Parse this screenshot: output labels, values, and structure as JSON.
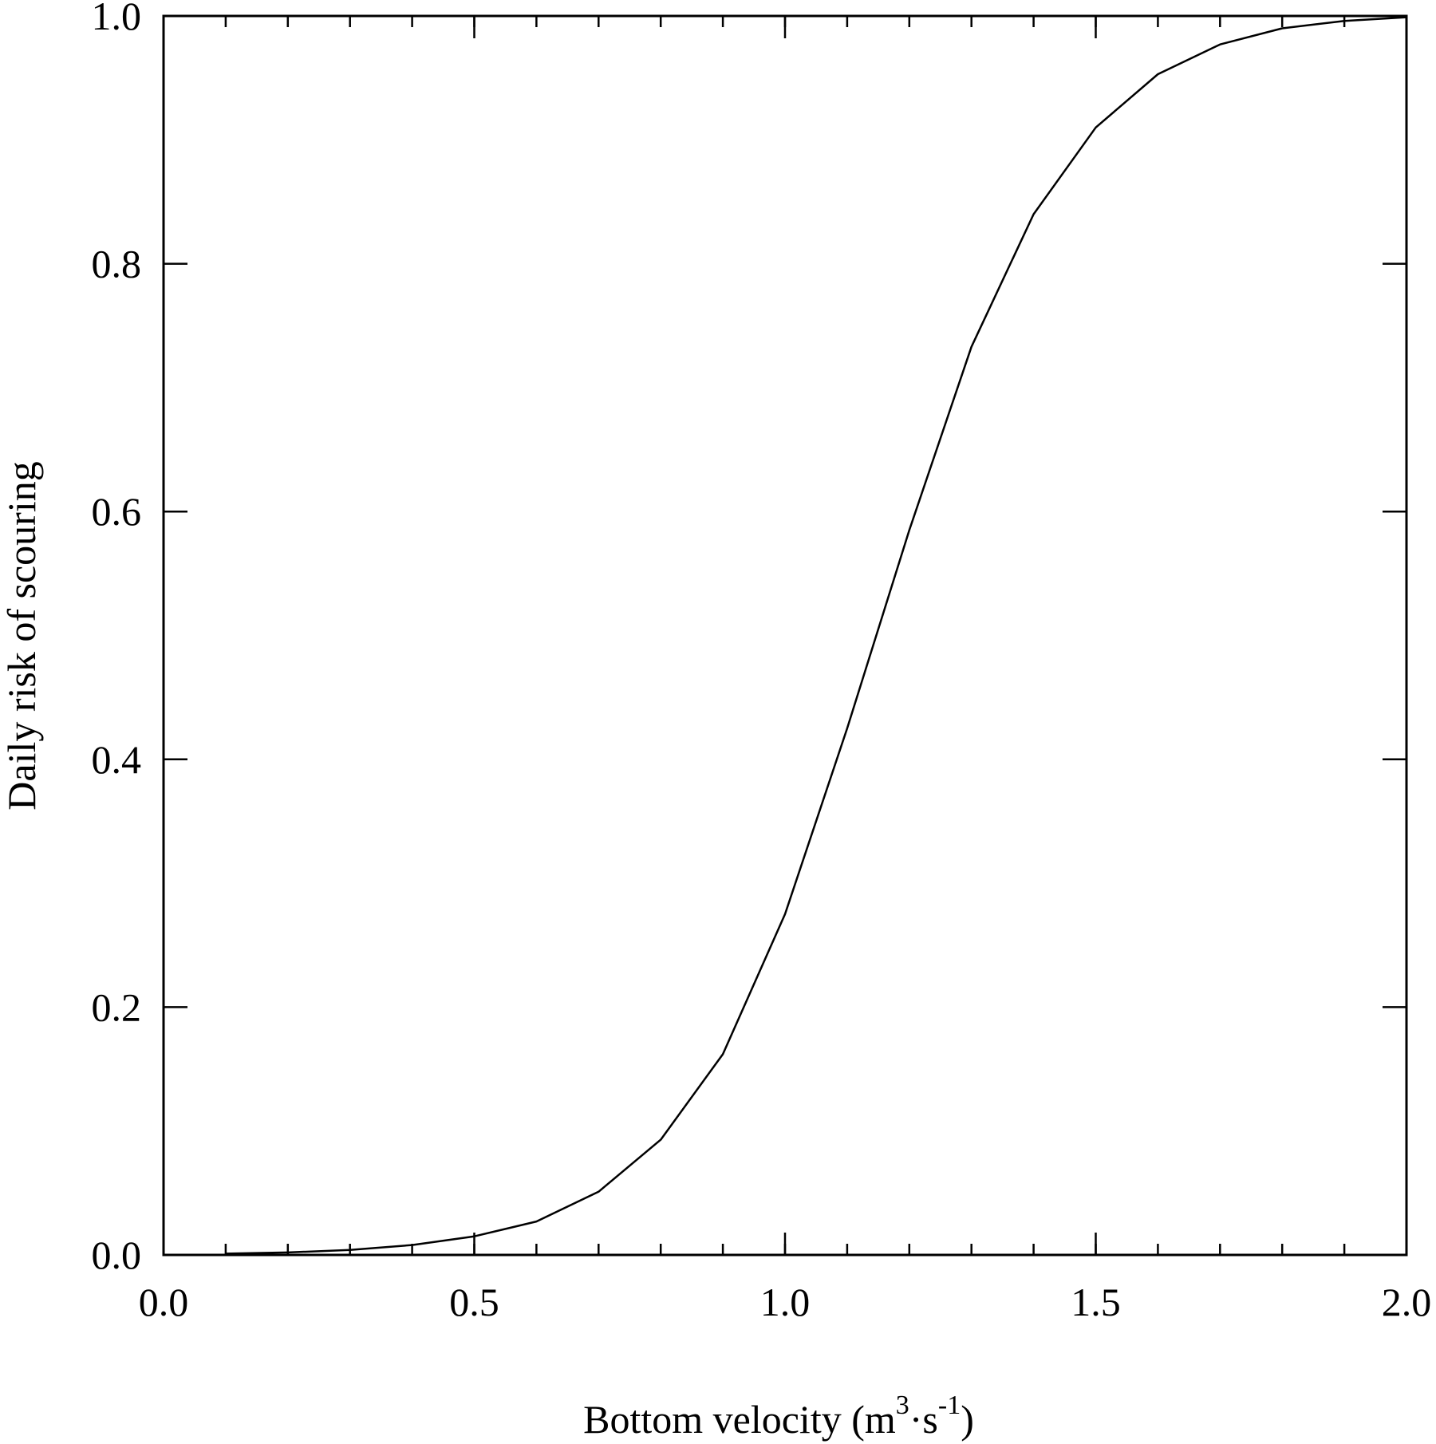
{
  "chart_data": {
    "type": "line",
    "title": "",
    "xlabel": {
      "main": "Bottom velocity (m",
      "sup1": "3",
      "mid": "·s",
      "sup2": "-1",
      "end": ")"
    },
    "ylabel": "Daily risk of scouring",
    "xlim": [
      0.0,
      2.0
    ],
    "ylim": [
      0.0,
      1.0
    ],
    "xticks": [
      0.0,
      0.5,
      1.0,
      1.5,
      2.0
    ],
    "xtick_labels": [
      "0.0",
      "0.5",
      "1.0",
      "1.5",
      "2.0"
    ],
    "yticks": [
      0.0,
      0.2,
      0.4,
      0.6,
      0.8,
      1.0
    ],
    "ytick_labels": [
      "0.0",
      "0.2",
      "0.4",
      "0.6",
      "0.8",
      "1.0"
    ],
    "x_minor_step": 0.1,
    "grid": false,
    "line_color": "#000000",
    "series": [
      {
        "x": [
          0.1,
          0.2,
          0.3,
          0.4,
          0.5,
          0.6,
          0.7,
          0.8,
          0.9,
          1.0,
          1.1,
          1.2,
          1.3,
          1.4,
          1.5,
          1.6,
          1.7,
          1.8,
          1.9,
          2.0
        ],
        "y": [
          0.001,
          0.002,
          0.004,
          0.008,
          0.015,
          0.027,
          0.051,
          0.093,
          0.162,
          0.275,
          0.425,
          0.585,
          0.733,
          0.84,
          0.91,
          0.953,
          0.977,
          0.99,
          0.996,
          0.999
        ]
      }
    ]
  }
}
